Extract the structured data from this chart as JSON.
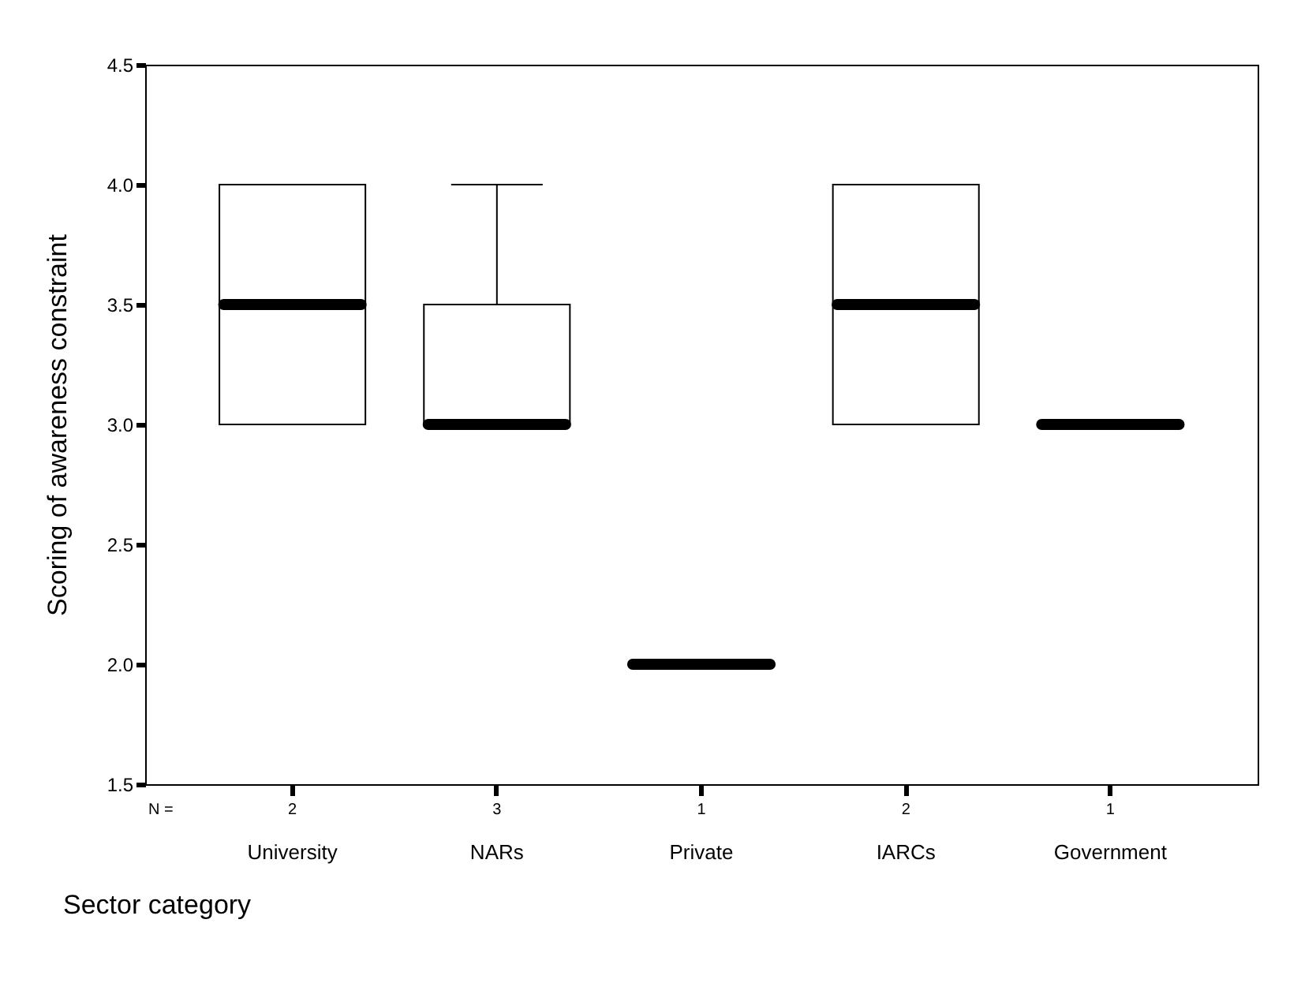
{
  "chart_data": {
    "type": "box",
    "xlabel": "Sector category",
    "ylabel": "Scoring of awareness constraint",
    "categories": [
      "University",
      "NARs",
      "Private",
      "IARCs",
      "Government"
    ],
    "boxes": [
      {
        "low": 3,
        "q1": 3,
        "median": 3.5,
        "q3": 4,
        "high": 4
      },
      {
        "low": 3,
        "q1": 3,
        "median": 3,
        "q3": 3.5,
        "high": 4
      },
      {
        "low": 2,
        "q1": 2,
        "median": 2,
        "q3": 2,
        "high": 2
      },
      {
        "low": 3,
        "q1": 3,
        "median": 3.5,
        "q3": 4,
        "high": 4
      },
      {
        "low": 3,
        "q1": 3,
        "median": 3,
        "q3": 3,
        "high": 3
      }
    ],
    "annotations": [
      "N =",
      "2",
      "3",
      "1",
      "2",
      "1"
    ],
    "ylim": [
      1.5,
      4.5
    ],
    "yticks": [
      1.5,
      {
        "value": 2,
        "label": "2.0"
      },
      2.5,
      {
        "value": 3,
        "label": "3.0"
      },
      3.5,
      {
        "value": 4,
        "label": "4.0"
      },
      4.5
    ],
    "grid": false
  }
}
